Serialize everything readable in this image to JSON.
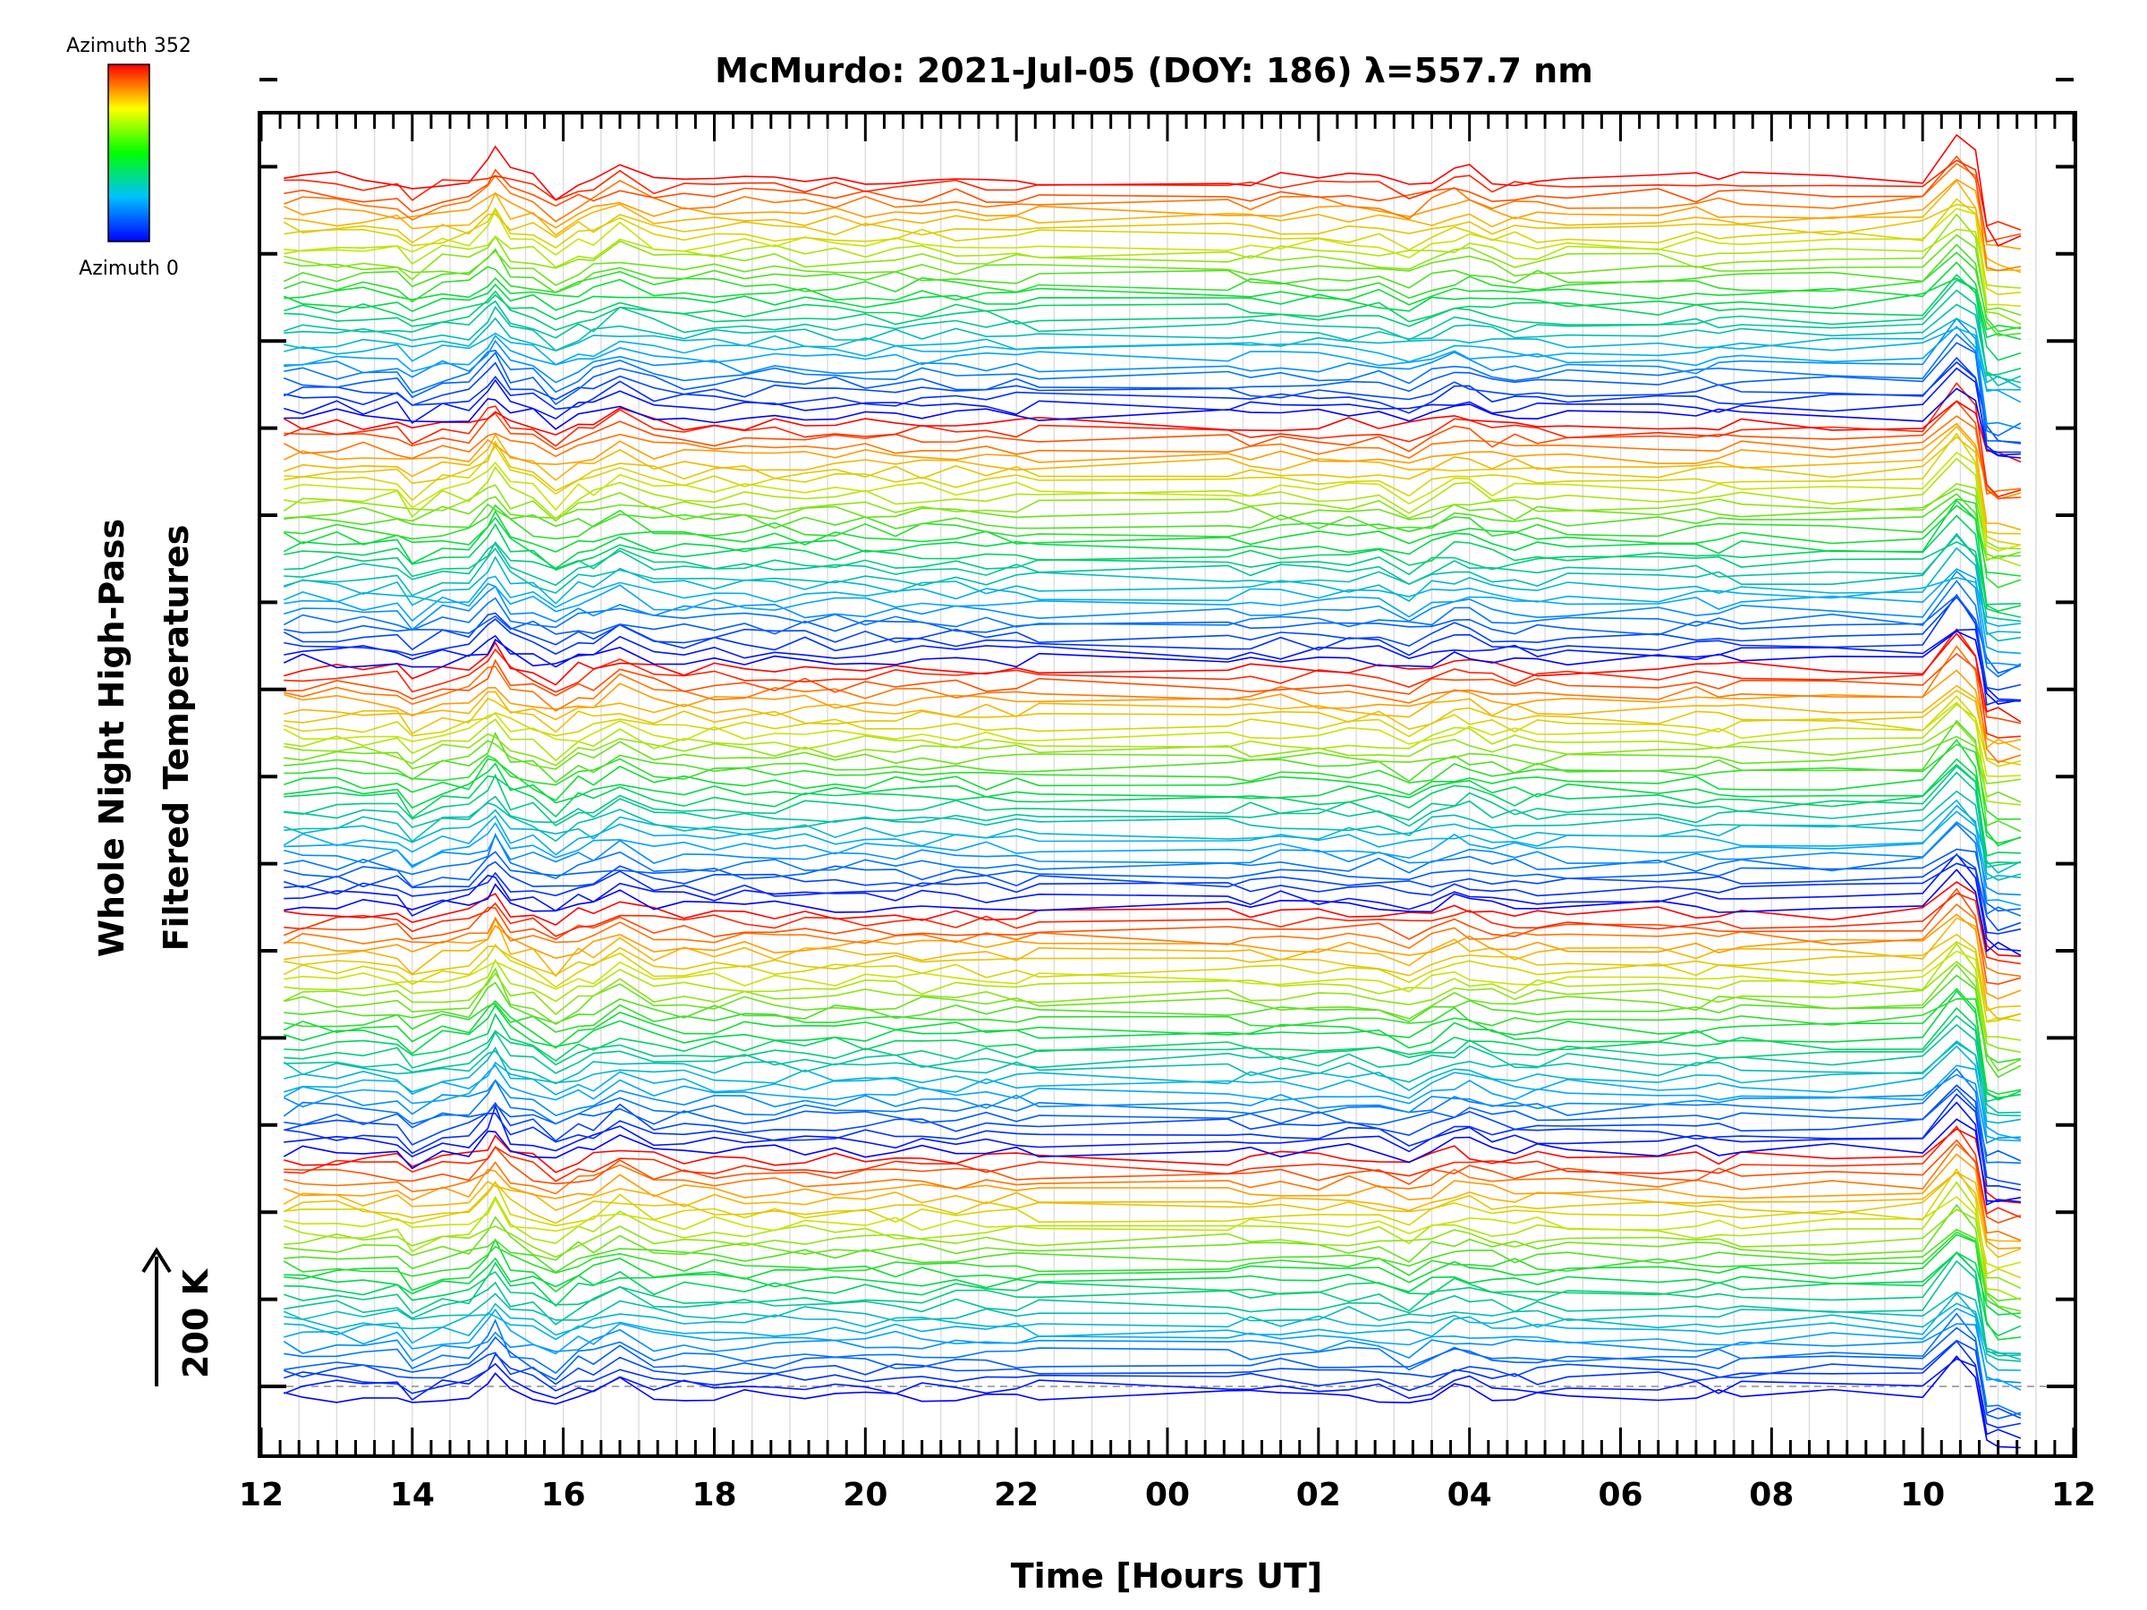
{
  "chart_data": {
    "type": "line",
    "title": "McMurdo: 2021-Jul-05 (DOY: 186) λ=557.7 nm",
    "xlabel": "Time [Hours UT]",
    "ylabel_line1": "Whole Night High-Pass",
    "ylabel_line2": "Filtered Temperatures",
    "scale_bar_label": "200 K",
    "xlim": [
      12,
      36
    ],
    "x_tick_values": [
      12,
      14,
      16,
      18,
      20,
      22,
      24,
      26,
      28,
      30,
      32,
      34,
      36
    ],
    "x_tick_labels": [
      "12",
      "14",
      "16",
      "18",
      "20",
      "22",
      "00",
      "02",
      "04",
      "06",
      "08",
      "10",
      "12"
    ],
    "grid": true,
    "colorbar": {
      "top_label": "Azimuth 352",
      "bottom_label": "Azimuth 0",
      "colors": [
        "#ff0000",
        "#ffff00",
        "#00ff00",
        "#00c0ff",
        "#0000ff"
      ]
    },
    "n_traces": 150,
    "n_groups": 5,
    "per_group": 30,
    "sample_times": [
      12.3,
      12.55,
      13.0,
      13.35,
      13.8,
      14.0,
      14.4,
      14.75,
      15.0,
      15.1,
      15.3,
      15.6,
      15.9,
      16.2,
      16.4,
      16.75,
      17.2,
      17.6,
      18.0,
      18.4,
      18.8,
      19.2,
      19.6,
      20.0,
      20.4,
      20.75,
      21.2,
      21.6,
      22.0,
      22.3,
      24.8,
      25.1,
      25.5,
      26.0,
      26.4,
      26.8,
      27.2,
      27.5,
      27.8,
      28.0,
      28.3,
      28.6,
      28.9,
      29.3,
      30.5,
      31.0,
      31.3,
      31.6,
      32.8,
      34.0,
      34.45,
      34.7,
      34.85,
      35.0,
      35.3
    ]
  }
}
